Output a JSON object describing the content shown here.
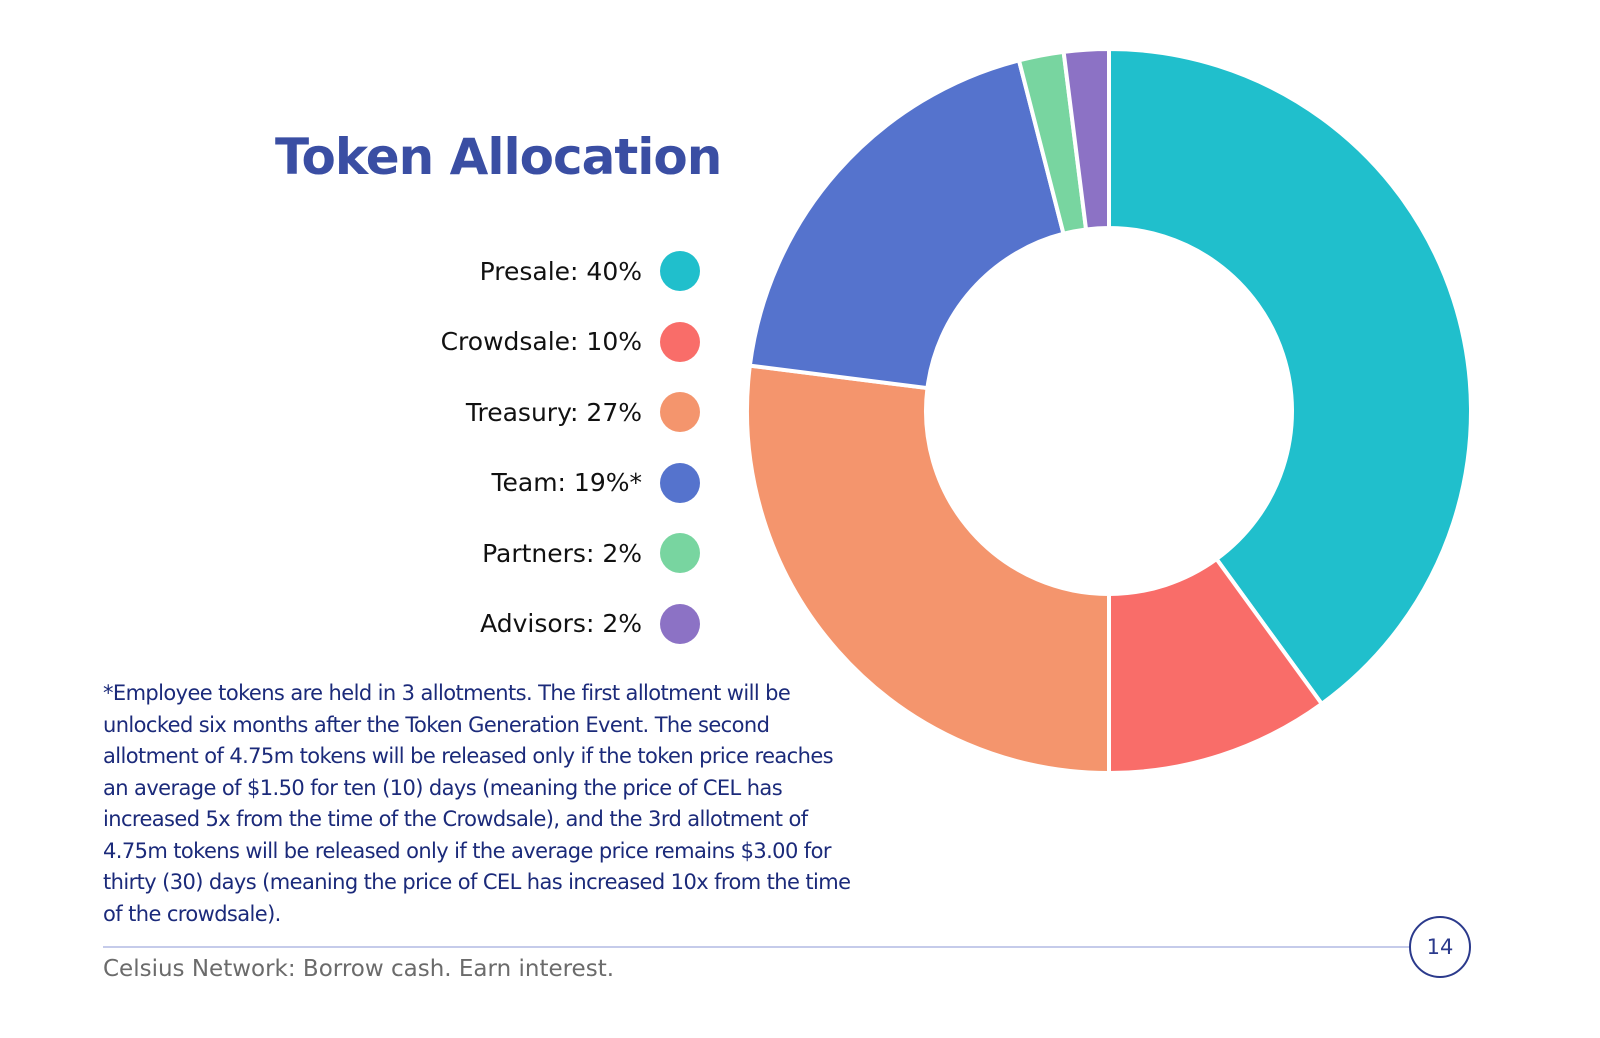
{
  "title": "Token Allocation",
  "legend": [
    {
      "label": "Presale: 40%",
      "color": "#20bfcc"
    },
    {
      "label": "Crowdsale: 10%",
      "color": "#f96d69"
    },
    {
      "label": "Treasury: 27%",
      "color": "#f4956d"
    },
    {
      "label": "Team: 19%*",
      "color": "#5573cd"
    },
    {
      "label": "Partners: 2%",
      "color": "#78d5a0"
    },
    {
      "label": "Advisors: 2%",
      "color": "#8c72c5"
    }
  ],
  "footnote": "*Employee tokens are held in 3 allotments. The first allotment will be unlocked six months after the Token Generation Event. The second allotment of 4.75m tokens will be released only if the token price reaches an average of $1.50 for ten (10) days (meaning the price of CEL has increased 5x from the time of the Crowdsale),  and the 3rd allotment of 4.75m tokens will be released only if the average price remains $3.00 for thirty (30) days (meaning the price of CEL has increased 10x from the time of the crowdsale).",
  "footer": {
    "tagline": "Celsius Network: Borrow cash. Earn interest.",
    "page_number": "14"
  },
  "chart_data": {
    "type": "pie",
    "title": "Token Allocation",
    "donut": true,
    "categories": [
      "Presale",
      "Crowdsale",
      "Treasury",
      "Team",
      "Partners",
      "Advisors"
    ],
    "values": [
      40,
      10,
      27,
      19,
      2,
      2
    ],
    "colors": [
      "#20bfcc",
      "#f96d69",
      "#f4956d",
      "#5573cd",
      "#78d5a0",
      "#8c72c5"
    ],
    "start_angle": "12 o'clock, clockwise",
    "legend_position": "left",
    "annotations": [
      "Team: 19%* — see footnote on employee token allotments"
    ]
  }
}
